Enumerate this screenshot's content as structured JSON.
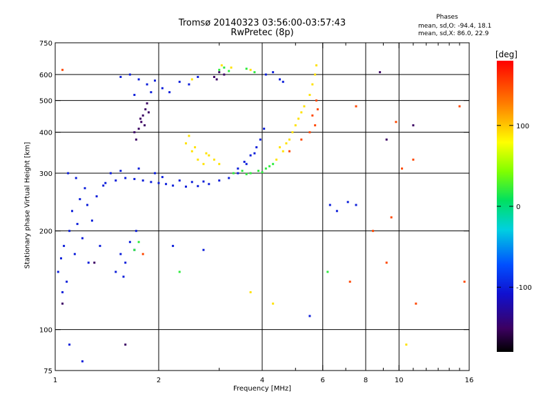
{
  "title": {
    "line1": "Tromsø 20140323 03:56:00-03:57:43",
    "line2": "RwPretec (8p)"
  },
  "phase_panel": {
    "title": "Phases",
    "stat_o": "mean, sd,O: -94.4, 18.1",
    "stat_x": "mean, sd,X: 86.0, 22.9"
  },
  "colorbar": {
    "unit_label": "[deg]",
    "min": -180,
    "max": 180,
    "ticks": [
      {
        "value": 100,
        "label": "100"
      },
      {
        "value": 0,
        "label": "0"
      },
      {
        "value": -100,
        "label": "-100"
      }
    ]
  },
  "chart_data": {
    "type": "scatter",
    "xlabel": "Frequency [MHz]",
    "ylabel": "Stationary phase Virtual Height [km]",
    "xscale": "log",
    "yscale": "log",
    "xlim": [
      1,
      16
    ],
    "ylim": [
      75,
      750
    ],
    "x_ticks": [
      {
        "value": 1,
        "label": "1"
      },
      {
        "value": 2,
        "label": "2"
      },
      {
        "value": 4,
        "label": "4"
      },
      {
        "value": 6,
        "label": "6"
      },
      {
        "value": 8,
        "label": "8"
      },
      {
        "value": 10,
        "label": "10"
      },
      {
        "value": 16,
        "label": "16"
      }
    ],
    "x_minor_ticks": [
      3,
      5,
      7,
      9,
      11,
      12,
      13,
      14,
      15
    ],
    "x_gridlines": [
      2,
      4,
      6,
      8,
      10
    ],
    "y_ticks": [
      {
        "value": 75,
        "label": "75"
      },
      {
        "value": 100,
        "label": "100"
      },
      {
        "value": 200,
        "label": "200"
      },
      {
        "value": 300,
        "label": "300"
      },
      {
        "value": 400,
        "label": "400"
      },
      {
        "value": 500,
        "label": "500"
      },
      {
        "value": 600,
        "label": "600"
      },
      {
        "value": 750,
        "label": "750"
      }
    ],
    "y_gridlines": [
      100,
      200,
      300,
      400,
      500,
      600
    ],
    "grid": true,
    "series": [
      {
        "color_value_deg": -100,
        "points": [
          [
            1.02,
            150
          ],
          [
            1.04,
            165
          ],
          [
            1.06,
            180
          ],
          [
            1.08,
            140
          ],
          [
            1.1,
            200
          ],
          [
            1.12,
            230
          ],
          [
            1.14,
            170
          ],
          [
            1.16,
            210
          ],
          [
            1.18,
            250
          ],
          [
            1.2,
            190
          ],
          [
            1.22,
            270
          ],
          [
            1.25,
            160
          ],
          [
            1.28,
            215
          ],
          [
            1.32,
            255
          ],
          [
            1.35,
            180
          ],
          [
            1.38,
            275
          ],
          [
            1.05,
            130
          ],
          [
            1.09,
            300
          ],
          [
            1.15,
            290
          ],
          [
            1.24,
            240
          ],
          [
            1.5,
            150
          ],
          [
            1.55,
            170
          ],
          [
            1.6,
            160
          ],
          [
            1.65,
            185
          ],
          [
            1.7,
            175
          ],
          [
            1.72,
            200
          ],
          [
            1.58,
            145
          ],
          [
            1.4,
            280
          ],
          [
            1.5,
            285
          ],
          [
            1.6,
            290
          ],
          [
            1.7,
            288
          ],
          [
            1.8,
            285
          ],
          [
            1.9,
            282
          ],
          [
            2.0,
            280
          ],
          [
            2.1,
            278
          ],
          [
            2.2,
            275
          ],
          [
            2.4,
            273
          ],
          [
            2.6,
            274
          ],
          [
            2.8,
            278
          ],
          [
            3.0,
            285
          ],
          [
            3.2,
            290
          ],
          [
            3.4,
            300
          ],
          [
            1.45,
            300
          ],
          [
            1.55,
            305
          ],
          [
            1.75,
            310
          ],
          [
            1.95,
            300
          ],
          [
            2.05,
            292
          ],
          [
            2.3,
            285
          ],
          [
            2.5,
            282
          ],
          [
            2.7,
            283
          ],
          [
            3.4,
            310
          ],
          [
            3.55,
            325
          ],
          [
            3.7,
            340
          ],
          [
            3.85,
            360
          ],
          [
            3.95,
            380
          ],
          [
            4.05,
            410
          ],
          [
            3.6,
            320
          ],
          [
            3.8,
            345
          ],
          [
            1.55,
            590
          ],
          [
            1.65,
            600
          ],
          [
            1.75,
            580
          ],
          [
            1.85,
            560
          ],
          [
            1.95,
            575
          ],
          [
            2.05,
            545
          ],
          [
            2.15,
            530
          ],
          [
            2.3,
            570
          ],
          [
            2.45,
            560
          ],
          [
            2.6,
            590
          ],
          [
            1.7,
            520
          ],
          [
            1.9,
            530
          ],
          [
            4.3,
            610
          ],
          [
            4.5,
            580
          ],
          [
            4.6,
            570
          ],
          [
            4.1,
            600
          ],
          [
            6.3,
            240
          ],
          [
            6.6,
            230
          ],
          [
            7.1,
            245
          ],
          [
            7.5,
            240
          ],
          [
            1.1,
            90
          ],
          [
            1.2,
            80
          ],
          [
            5.5,
            110
          ],
          [
            2.2,
            180
          ],
          [
            2.7,
            175
          ]
        ]
      },
      {
        "color_value_deg": -150,
        "points": [
          [
            1.72,
            380
          ],
          [
            1.75,
            410
          ],
          [
            1.78,
            430
          ],
          [
            1.8,
            450
          ],
          [
            1.83,
            470
          ],
          [
            1.85,
            490
          ],
          [
            1.7,
            400
          ],
          [
            1.77,
            440
          ],
          [
            1.82,
            420
          ],
          [
            1.87,
            460
          ],
          [
            2.9,
            590
          ],
          [
            3.0,
            610
          ],
          [
            3.1,
            600
          ],
          [
            2.95,
            580
          ],
          [
            1.05,
            120
          ],
          [
            1.3,
            160
          ],
          [
            1.6,
            90
          ],
          [
            11,
            420
          ],
          [
            9.2,
            380
          ],
          [
            8.8,
            610
          ]
        ]
      },
      {
        "color_value_deg": 20,
        "points": [
          [
            3.3,
            300
          ],
          [
            3.5,
            305
          ],
          [
            3.7,
            300
          ],
          [
            3.9,
            305
          ],
          [
            4.1,
            310
          ],
          [
            4.3,
            320
          ],
          [
            3.6,
            298
          ],
          [
            4.0,
            302
          ],
          [
            4.2,
            315
          ],
          [
            3.0,
            620
          ],
          [
            3.1,
            630
          ],
          [
            3.2,
            615
          ],
          [
            3.6,
            625
          ],
          [
            3.8,
            610
          ],
          [
            1.75,
            185
          ],
          [
            1.7,
            175
          ],
          [
            6.2,
            150
          ],
          [
            2.3,
            150
          ]
        ]
      },
      {
        "color_value_deg": 90,
        "points": [
          [
            2.4,
            370
          ],
          [
            2.5,
            350
          ],
          [
            2.6,
            330
          ],
          [
            2.7,
            320
          ],
          [
            2.8,
            340
          ],
          [
            2.9,
            330
          ],
          [
            3.0,
            320
          ],
          [
            2.45,
            390
          ],
          [
            2.55,
            360
          ],
          [
            2.75,
            345
          ],
          [
            4.4,
            330
          ],
          [
            4.6,
            350
          ],
          [
            4.8,
            380
          ],
          [
            5.0,
            420
          ],
          [
            5.2,
            460
          ],
          [
            5.5,
            520
          ],
          [
            5.7,
            600
          ],
          [
            4.5,
            360
          ],
          [
            4.9,
            400
          ],
          [
            5.3,
            480
          ],
          [
            5.6,
            560
          ],
          [
            5.75,
            640
          ],
          [
            5.1,
            440
          ],
          [
            4.7,
            370
          ],
          [
            3.05,
            640
          ],
          [
            3.25,
            630
          ],
          [
            3.7,
            620
          ],
          [
            2.5,
            580
          ],
          [
            10.5,
            90
          ],
          [
            3.7,
            130
          ],
          [
            4.3,
            120
          ]
        ]
      },
      {
        "color_value_deg": 150,
        "points": [
          [
            5.7,
            420
          ],
          [
            5.6,
            450
          ],
          [
            5.75,
            500
          ],
          [
            5.5,
            400
          ],
          [
            5.8,
            470
          ],
          [
            4.8,
            350
          ],
          [
            5.2,
            380
          ],
          [
            7.5,
            480
          ],
          [
            9.2,
            160
          ],
          [
            11,
            330
          ],
          [
            15,
            480
          ],
          [
            10.2,
            310
          ],
          [
            8.4,
            200
          ],
          [
            9.5,
            220
          ],
          [
            1.8,
            170
          ],
          [
            1.05,
            620
          ],
          [
            15.5,
            140
          ],
          [
            11.2,
            120
          ],
          [
            7.2,
            140
          ],
          [
            9.8,
            430
          ]
        ]
      }
    ]
  }
}
